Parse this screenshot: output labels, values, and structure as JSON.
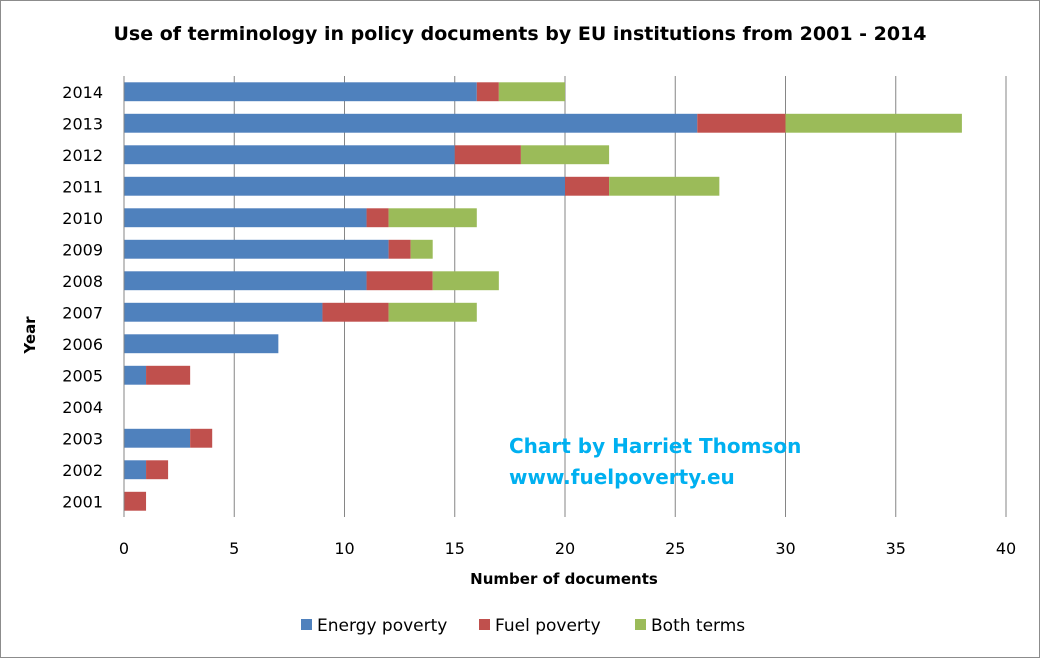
{
  "chart_data": {
    "type": "bar",
    "orientation": "horizontal",
    "stacked": true,
    "title": "Use of terminology in policy documents by EU institutions from 2001 - 2014",
    "xlabel": "Number of documents",
    "ylabel": "Year",
    "xlim": [
      0,
      40
    ],
    "xticks": [
      "0",
      "5",
      "10",
      "15",
      "20",
      "25",
      "30",
      "35",
      "40"
    ],
    "grid": "vertical",
    "legend_position": "bottom",
    "categories": [
      "2014",
      "2013",
      "2012",
      "2011",
      "2010",
      "2009",
      "2008",
      "2007",
      "2006",
      "2005",
      "2004",
      "2003",
      "2002",
      "2001"
    ],
    "series": [
      {
        "name": "Energy poverty",
        "color": "#4f81bd",
        "values": [
          16,
          26,
          15,
          20,
          11,
          12,
          11,
          9,
          7,
          1,
          0,
          3,
          1,
          0
        ]
      },
      {
        "name": "Fuel poverty",
        "color": "#c0504d",
        "values": [
          1,
          4,
          3,
          2,
          1,
          1,
          3,
          3,
          0,
          2,
          0,
          1,
          1,
          1
        ]
      },
      {
        "name": "Both terms",
        "color": "#9bbb59",
        "values": [
          3,
          8,
          4,
          5,
          4,
          1,
          3,
          4,
          0,
          0,
          0,
          0,
          0,
          0
        ]
      }
    ],
    "annotation": {
      "lines": [
        "Chart by Harriet Thomson",
        "www.fuelpoverty.eu"
      ],
      "color": "#00b0f0"
    }
  }
}
